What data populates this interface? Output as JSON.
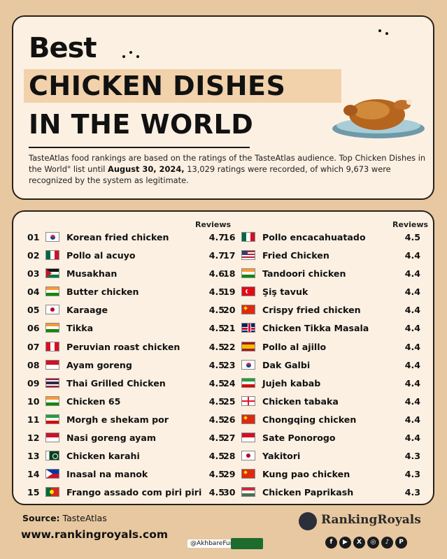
{
  "header": {
    "line1": "Best",
    "line2": "CHICKEN DISHES",
    "line3": "IN THE WORLD"
  },
  "description": {
    "part1": "TasteAtlas food rankings are based on the ratings of the TasteAtlas audience. Top Chicken Dishes in the World\" list until ",
    "date": "August 30, 2024,",
    "part2": " 13,029 ratings were recorded, of which 9,673 were recognized by the system as legitimate."
  },
  "list": {
    "reviews_label": "Reviews",
    "items": [
      {
        "rank": "01",
        "dish": "Korean fried chicken",
        "score": "4.7",
        "flag": "KR"
      },
      {
        "rank": "02",
        "dish": "Pollo al acuyo",
        "score": "4.7",
        "flag": "MX"
      },
      {
        "rank": "03",
        "dish": "Musakhan",
        "score": "4.6",
        "flag": "PS"
      },
      {
        "rank": "04",
        "dish": "Butter chicken",
        "score": "4.5",
        "flag": "IN"
      },
      {
        "rank": "05",
        "dish": "Karaage",
        "score": "4.5",
        "flag": "JP"
      },
      {
        "rank": "06",
        "dish": "Tikka",
        "score": "4.5",
        "flag": "IN"
      },
      {
        "rank": "07",
        "dish": "Peruvian roast chicken",
        "score": "4.5",
        "flag": "PE"
      },
      {
        "rank": "08",
        "dish": "Ayam goreng",
        "score": "4.5",
        "flag": "ID"
      },
      {
        "rank": "09",
        "dish": "Thai Grilled Chicken",
        "score": "4.5",
        "flag": "TH"
      },
      {
        "rank": "10",
        "dish": "Chicken 65",
        "score": "4.5",
        "flag": "IN"
      },
      {
        "rank": "11",
        "dish": "Morgh e shekam por",
        "score": "4.5",
        "flag": "IR"
      },
      {
        "rank": "12",
        "dish": "Nasi goreng ayam",
        "score": "4.5",
        "flag": "ID"
      },
      {
        "rank": "13",
        "dish": "Chicken karahi",
        "score": "4.5",
        "flag": "PK"
      },
      {
        "rank": "14",
        "dish": "Inasal na manok",
        "score": "4.5",
        "flag": "PH"
      },
      {
        "rank": "15",
        "dish": "Frango assado com piri piri",
        "score": "4.5",
        "flag": "PT"
      },
      {
        "rank": "16",
        "dish": "Pollo encacahuatado",
        "score": "4.5",
        "flag": "MX"
      },
      {
        "rank": "17",
        "dish": "Fried Chicken",
        "score": "4.4",
        "flag": "US"
      },
      {
        "rank": "18",
        "dish": "Tandoori chicken",
        "score": "4.4",
        "flag": "IN"
      },
      {
        "rank": "19",
        "dish": "Şiş tavuk",
        "score": "4.4",
        "flag": "TR"
      },
      {
        "rank": "20",
        "dish": "Crispy fried chicken",
        "score": "4.4",
        "flag": "CN"
      },
      {
        "rank": "21",
        "dish": "Chicken Tikka Masala",
        "score": "4.4",
        "flag": "GB"
      },
      {
        "rank": "22",
        "dish": "Pollo al ajillo",
        "score": "4.4",
        "flag": "ES"
      },
      {
        "rank": "23",
        "dish": "Dak Galbi",
        "score": "4.4",
        "flag": "KR"
      },
      {
        "rank": "24",
        "dish": "Jujeh kabab",
        "score": "4.4",
        "flag": "IR"
      },
      {
        "rank": "25",
        "dish": "Chicken tabaka",
        "score": "4.4",
        "flag": "GE"
      },
      {
        "rank": "26",
        "dish": "Chongqing chicken",
        "score": "4.4",
        "flag": "CN"
      },
      {
        "rank": "27",
        "dish": "Sate Ponorogo",
        "score": "4.4",
        "flag": "ID"
      },
      {
        "rank": "28",
        "dish": "Yakitori",
        "score": "4.3",
        "flag": "JP"
      },
      {
        "rank": "29",
        "dish": "Kung pao chicken",
        "score": "4.3",
        "flag": "CN"
      },
      {
        "rank": "30",
        "dish": "Chicken Paprikash",
        "score": "4.3",
        "flag": "HU"
      }
    ]
  },
  "footer": {
    "source_label": "Source:",
    "source_value": " TasteAtlas",
    "website": "www.rankingroyals.com",
    "handle": "@AkhbareFuri",
    "brand": "RankingRoyals",
    "social_icons": [
      "facebook-icon",
      "youtube-icon",
      "x-icon",
      "instagram-icon",
      "tiktok-icon",
      "pinterest-icon"
    ]
  }
}
